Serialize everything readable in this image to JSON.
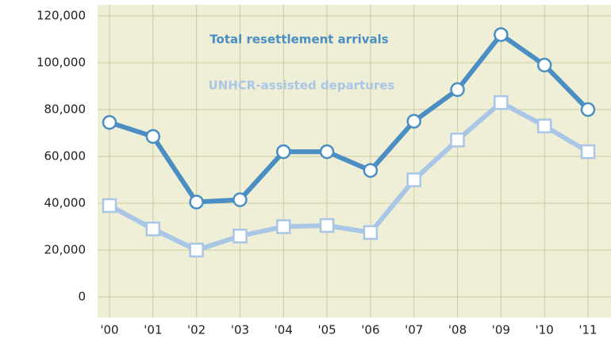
{
  "chart_data": {
    "type": "line",
    "categories": [
      "'00",
      "'01",
      "'02",
      "'03",
      "'04",
      "'05",
      "'06",
      "'07",
      "'08",
      "'09",
      "'10",
      "'11"
    ],
    "series": [
      {
        "name": "Total resettlement arrivals",
        "color": "#4a8ec4",
        "marker": "circle",
        "values": [
          74500,
          68500,
          40500,
          41500,
          62000,
          62000,
          54000,
          75000,
          88500,
          112000,
          99000,
          80000
        ]
      },
      {
        "name": "UNHCR-assisted departures",
        "color": "#a9c6e6",
        "marker": "square",
        "values": [
          39000,
          29000,
          20000,
          26000,
          30000,
          30500,
          27500,
          50000,
          67000,
          83000,
          73000,
          62000
        ]
      }
    ],
    "ylim": [
      0,
      120000
    ],
    "yticks": [
      0,
      {
        "value": 20000,
        "label": "20,000"
      },
      {
        "value": 40000,
        "label": "40,000"
      },
      {
        "value": 60000,
        "label": "60,000"
      },
      {
        "value": 80000,
        "label": "80,000"
      },
      {
        "value": 100000,
        "label": "100,000"
      },
      {
        "value": 120000,
        "label": "120,000"
      }
    ],
    "grid": true
  }
}
